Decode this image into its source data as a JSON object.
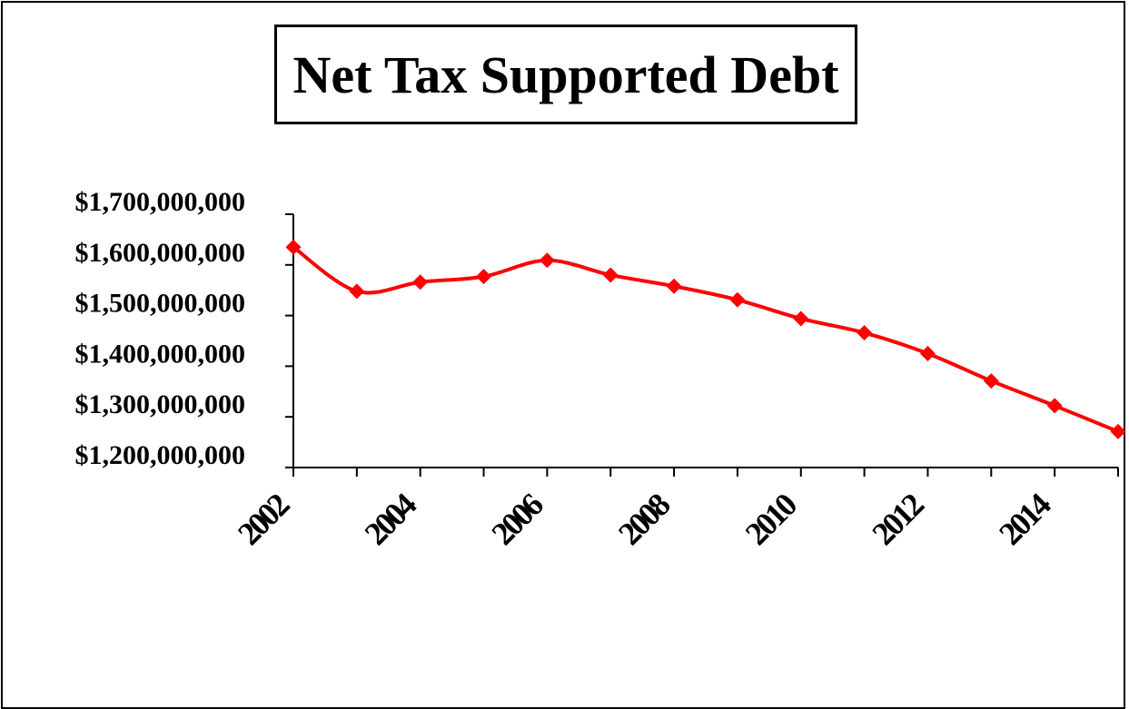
{
  "chart_data": {
    "type": "line",
    "title": "Net Tax Supported Debt",
    "xlabel": "",
    "ylabel": "",
    "x": [
      2002,
      2003,
      2004,
      2005,
      2006,
      2007,
      2008,
      2009,
      2010,
      2011,
      2012,
      2013,
      2014,
      2015
    ],
    "series": [
      {
        "values": [
          1635000000,
          1548000000,
          1566000000,
          1577000000,
          1609000000,
          1580000000,
          1558000000,
          1531000000,
          1494000000,
          1466000000,
          1425000000,
          1371000000,
          1322000000,
          1271000000
        ],
        "color": "#ff0000",
        "marker": "diamond"
      }
    ],
    "y_ticks": [
      "$1,200,000,000",
      "$1,300,000,000",
      "$1,400,000,000",
      "$1,500,000,000",
      "$1,600,000,000",
      "$1,700,000,000"
    ],
    "y_tick_values": [
      1200000000,
      1300000000,
      1400000000,
      1500000000,
      1600000000,
      1700000000
    ],
    "x_tick_labels": [
      "2002",
      "2004",
      "2006",
      "2008",
      "2010",
      "2012",
      "2014"
    ],
    "ylim": [
      1200000000,
      1700000000
    ],
    "grid": false,
    "legend": "none"
  }
}
